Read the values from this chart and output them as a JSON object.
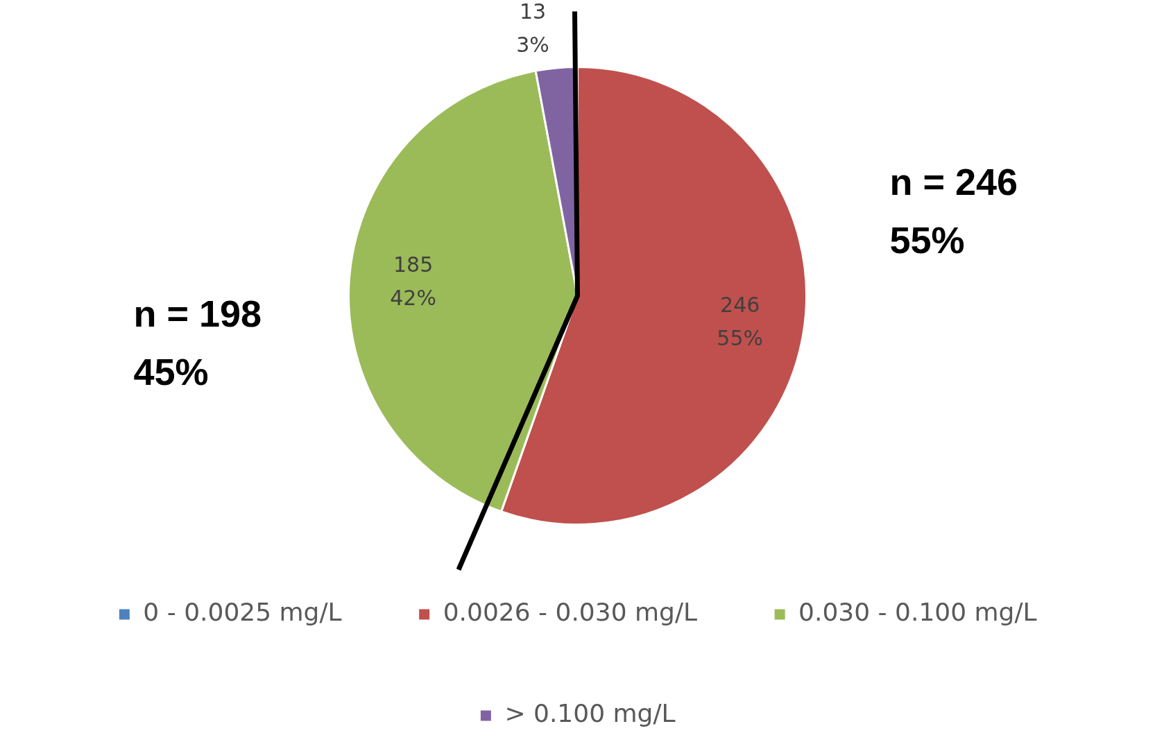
{
  "chart_data": {
    "type": "pie",
    "categories": [
      "0 - 0.0025 mg/L",
      "0.0026 - 0.030 mg/L",
      "0.030 - 0.100 mg/L",
      "> 0.100 mg/L"
    ],
    "values": [
      0,
      246,
      185,
      13
    ],
    "colors": [
      "#4f81bd",
      "#c0504d",
      "#9bbb59",
      "#8064a2"
    ],
    "value_labels": [
      null,
      "246\n55%",
      "185\n42%",
      "13\n3%"
    ],
    "annotations": [
      "n = 198\n45%",
      "n = 246\n55%"
    ],
    "legend": "bottom"
  }
}
